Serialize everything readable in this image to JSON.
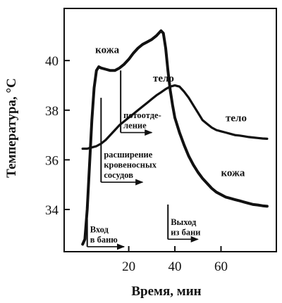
{
  "chart_data": {
    "type": "line",
    "xlabel": "Время, мин",
    "ylabel": "Температура, °С",
    "xlim": [
      -8,
      84
    ],
    "ylim": [
      32.3,
      42.1
    ],
    "xticks": [
      {
        "value": 20,
        "label": "20"
      },
      {
        "value": 40,
        "label": "40"
      },
      {
        "value": 60,
        "label": "60"
      }
    ],
    "yticks": [
      {
        "value": 34,
        "label": "34"
      },
      {
        "value": 36,
        "label": "36"
      },
      {
        "value": 38,
        "label": "38"
      },
      {
        "value": 40,
        "label": "40"
      }
    ],
    "grid": false,
    "series": [
      {
        "name": "кожа",
        "x": [
          0,
          1,
          2,
          3,
          4,
          5,
          6,
          7,
          8,
          10,
          12,
          14,
          16,
          18,
          20,
          22,
          24,
          26,
          28,
          30,
          32,
          33,
          34,
          35,
          36,
          37,
          38,
          39,
          40,
          42,
          44,
          46,
          48,
          50,
          52,
          54,
          56,
          58,
          60,
          62,
          64,
          66,
          68,
          70,
          72,
          74,
          76,
          78,
          80
        ],
        "y": [
          32.6,
          32.8,
          34.0,
          35.8,
          37.6,
          38.9,
          39.6,
          39.75,
          39.7,
          39.65,
          39.6,
          39.6,
          39.7,
          39.85,
          40.05,
          40.3,
          40.5,
          40.65,
          40.75,
          40.85,
          41.0,
          41.1,
          41.2,
          41.1,
          40.5,
          39.6,
          38.8,
          38.2,
          37.7,
          37.1,
          36.6,
          36.15,
          35.8,
          35.5,
          35.25,
          35.05,
          34.85,
          34.7,
          34.6,
          34.5,
          34.45,
          34.4,
          34.35,
          34.3,
          34.25,
          34.2,
          34.18,
          34.15,
          34.13
        ]
      },
      {
        "name": "тело",
        "x": [
          0,
          2,
          4,
          6,
          8,
          10,
          12,
          14,
          16,
          18,
          20,
          22,
          24,
          26,
          28,
          30,
          32,
          34,
          36,
          38,
          40,
          42,
          44,
          46,
          48,
          50,
          52,
          54,
          56,
          58,
          60,
          62,
          64,
          66,
          68,
          70,
          72,
          74,
          76,
          78,
          80
        ],
        "y": [
          36.45,
          36.45,
          36.5,
          36.55,
          36.65,
          36.8,
          37.0,
          37.2,
          37.4,
          37.55,
          37.7,
          37.85,
          38.0,
          38.15,
          38.3,
          38.45,
          38.6,
          38.72,
          38.85,
          38.95,
          39.0,
          38.95,
          38.75,
          38.5,
          38.2,
          37.9,
          37.6,
          37.45,
          37.3,
          37.2,
          37.15,
          37.1,
          37.05,
          37.0,
          36.98,
          36.95,
          36.92,
          36.9,
          36.88,
          36.86,
          36.85
        ]
      }
    ],
    "series_labels": [
      {
        "text": "кожа",
        "x": 5.5,
        "y": 40.3
      },
      {
        "text": "тело",
        "x": 30.5,
        "y": 39.15
      },
      {
        "text": "тело",
        "x": 62,
        "y": 37.55
      },
      {
        "text": "кожа",
        "x": 60,
        "y": 35.35
      }
    ],
    "annotations": [
      {
        "id": "entry",
        "lines": [
          "Вход",
          "в баню"
        ],
        "x": 2,
        "y_top": 33.6,
        "y_bottom": 32.5,
        "arrow_to": 18
      },
      {
        "id": "sweat",
        "lines": [
          "потоотде-",
          "ление"
        ],
        "x": 16.5,
        "y_top": 39.6,
        "y_bottom": 37.1,
        "arrow_to": 30
      },
      {
        "id": "vessels",
        "lines": [
          "расширение",
          "кровеносных",
          "сосудов"
        ],
        "x": 8,
        "y_top": 38.5,
        "y_bottom": 35.1,
        "arrow_to": 26
      },
      {
        "id": "exit",
        "lines": [
          "Выход",
          "из бани"
        ],
        "x": 37,
        "y_top": 34.2,
        "y_bottom": 32.8,
        "arrow_to": 50
      }
    ]
  }
}
